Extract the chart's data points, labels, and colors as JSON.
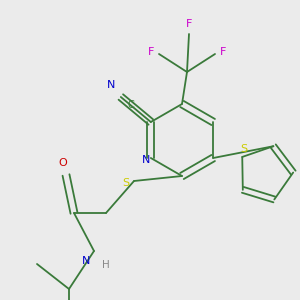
{
  "bg_color": "#ebebeb",
  "bond_color": "#3a7a3a",
  "atom_colors": {
    "N": "#0000cc",
    "O": "#cc0000",
    "S": "#cccc00",
    "F": "#cc00cc",
    "C": "#3a7a3a",
    "H": "#888888"
  },
  "figsize": [
    3.0,
    3.0
  ],
  "dpi": 100
}
